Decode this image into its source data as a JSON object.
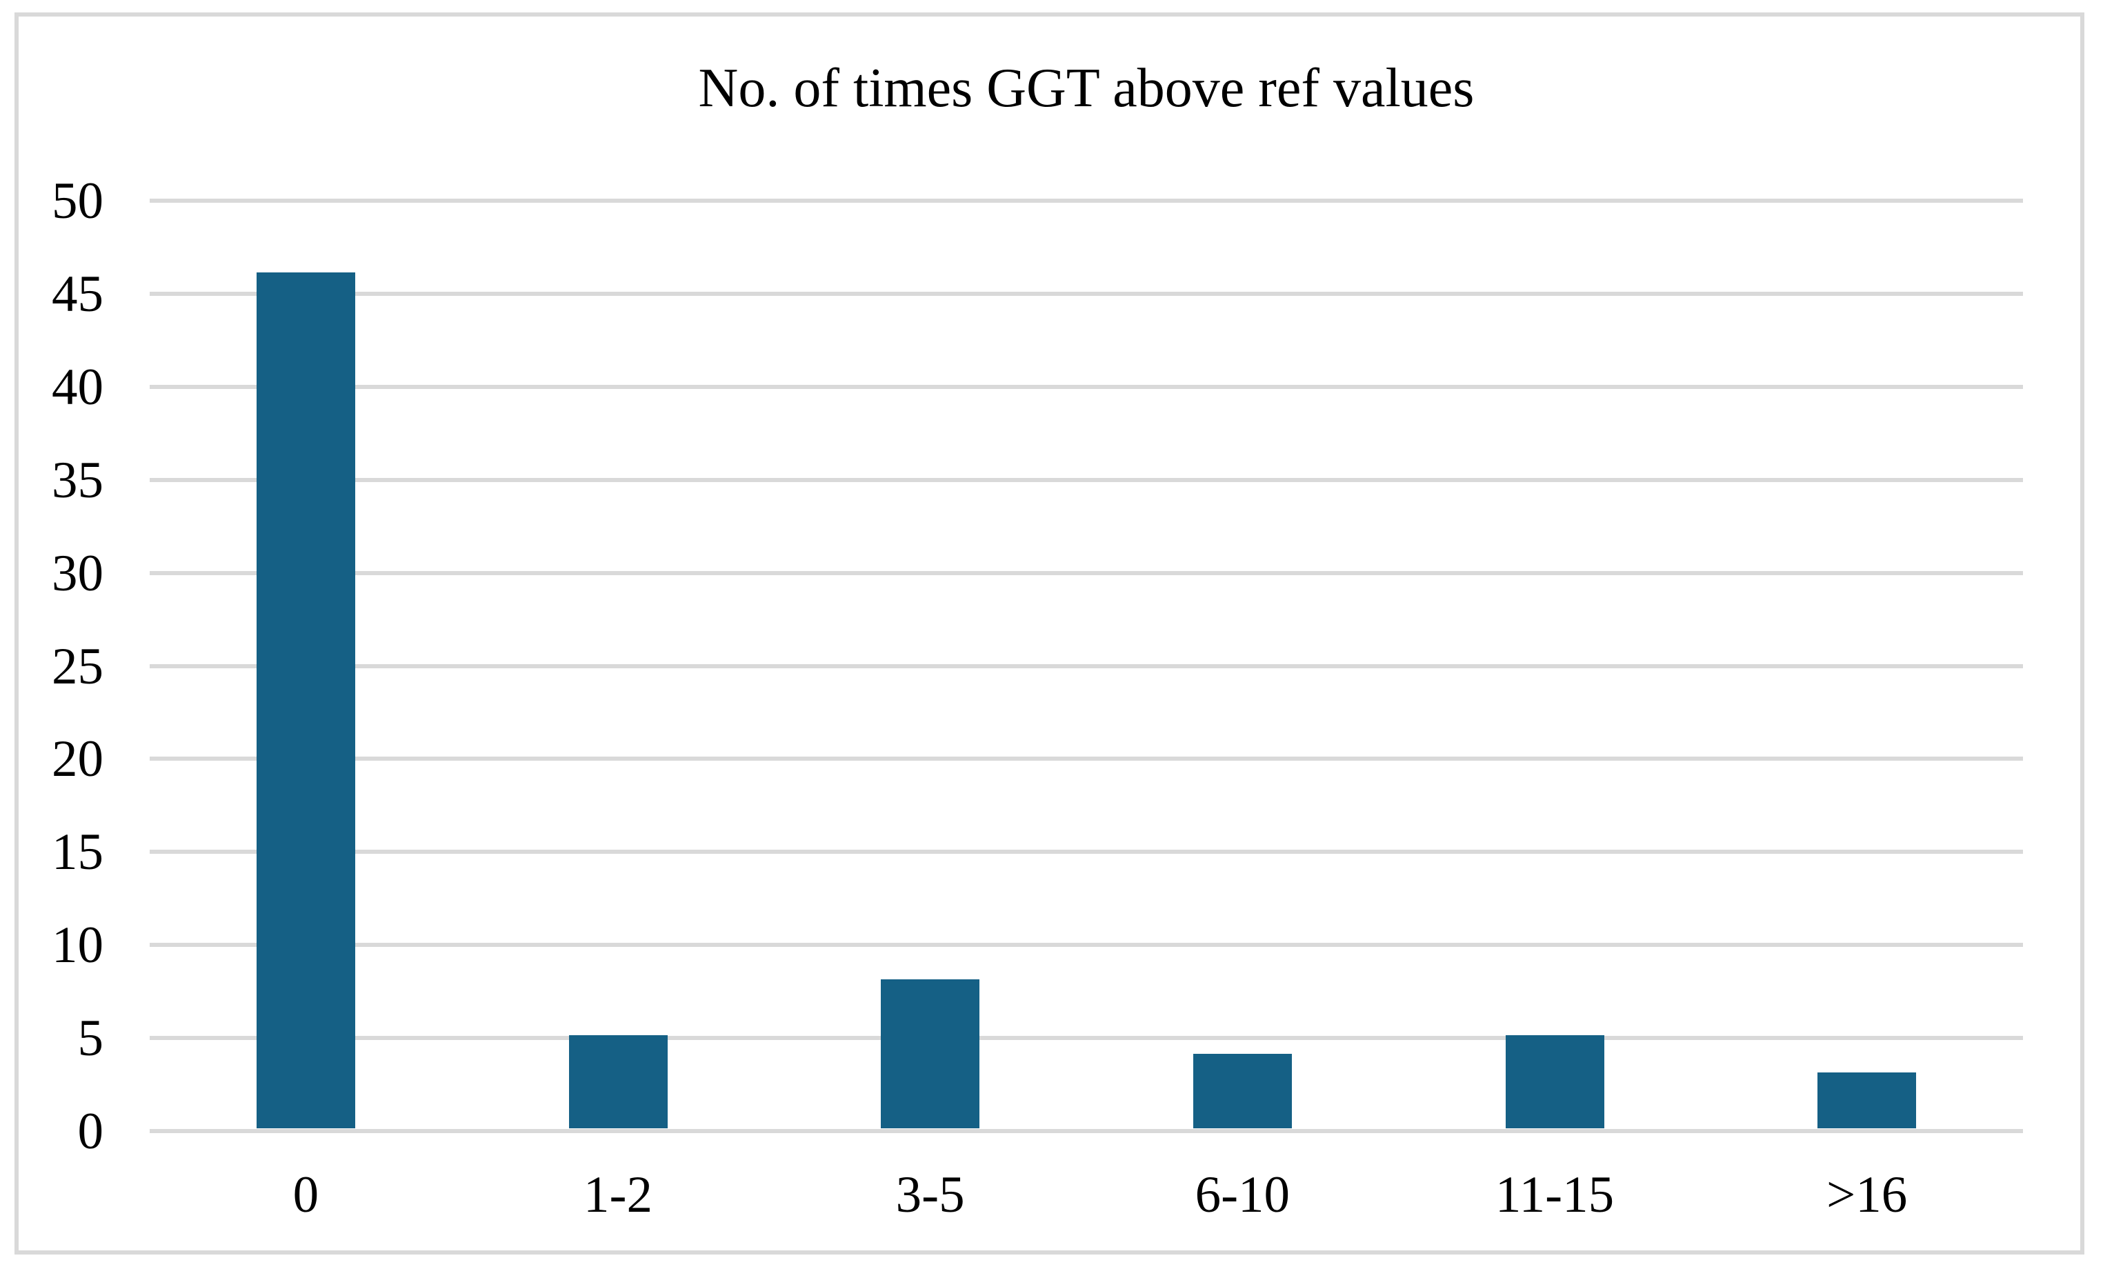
{
  "chart_data": {
    "type": "bar",
    "title": "No. of times GGT above ref values",
    "categories": [
      "0",
      "1-2",
      "3-5",
      "6-10",
      "11-15",
      ">16"
    ],
    "values": [
      46,
      5,
      8,
      4,
      5,
      3
    ],
    "xlabel": "",
    "ylabel": "",
    "ylim": [
      0,
      50
    ],
    "yticks": [
      0,
      5,
      10,
      15,
      20,
      25,
      30,
      35,
      40,
      45,
      50
    ],
    "grid": "horizontal-only",
    "legend": "none",
    "colors": {
      "bar": "#156085",
      "gridline": "#d9d9d9",
      "frame": "#d9d9d9",
      "text": "#000000",
      "background": "#ffffff"
    }
  }
}
